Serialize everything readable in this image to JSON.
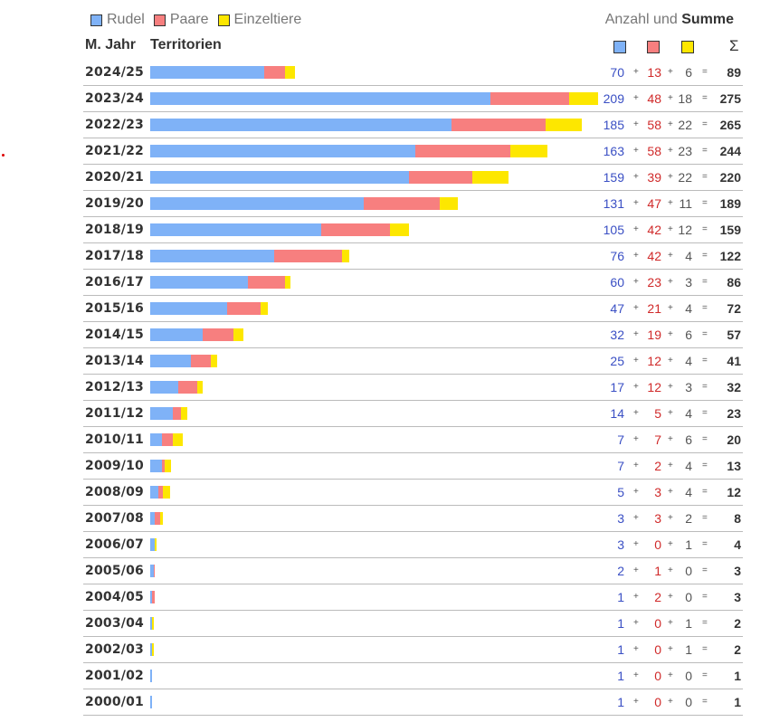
{
  "legend": {
    "rudel": "Rudel",
    "paare": "Paare",
    "einzeltiere": "Einzeltiere"
  },
  "header": {
    "anzahl_und": "Anzahl und",
    "summe": "Summe",
    "col_year": "M. Jahr",
    "col_territorien": "Territorien",
    "sigma": "Σ"
  },
  "colors": {
    "rudel": "#7fb2f7",
    "paare": "#f77f7f",
    "einzeltiere": "#fde700"
  },
  "chart_data": {
    "type": "bar",
    "stacked": true,
    "orientation": "horizontal",
    "categories": [
      "2024/25",
      "2023/24",
      "2022/23",
      "2021/22",
      "2020/21",
      "2019/20",
      "2018/19",
      "2017/18",
      "2016/17",
      "2015/16",
      "2014/15",
      "2013/14",
      "2012/13",
      "2011/12",
      "2010/11",
      "2009/10",
      "2008/09",
      "2007/08",
      "2006/07",
      "2005/06",
      "2004/05",
      "2003/04",
      "2002/03",
      "2001/02",
      "2000/01"
    ],
    "series": [
      {
        "name": "Rudel",
        "values": [
          70,
          209,
          185,
          163,
          159,
          131,
          105,
          76,
          60,
          47,
          32,
          25,
          17,
          14,
          7,
          7,
          5,
          3,
          3,
          2,
          1,
          1,
          1,
          1,
          1
        ]
      },
      {
        "name": "Paare",
        "values": [
          13,
          48,
          58,
          58,
          39,
          47,
          42,
          42,
          23,
          21,
          19,
          12,
          12,
          5,
          7,
          2,
          3,
          3,
          0,
          1,
          2,
          0,
          0,
          0,
          0
        ]
      },
      {
        "name": "Einzeltiere",
        "values": [
          6,
          18,
          22,
          23,
          22,
          11,
          12,
          4,
          3,
          4,
          6,
          4,
          3,
          4,
          6,
          4,
          4,
          2,
          1,
          0,
          0,
          1,
          1,
          0,
          0
        ]
      }
    ],
    "totals": [
      89,
      275,
      265,
      244,
      220,
      189,
      159,
      122,
      86,
      72,
      57,
      41,
      32,
      23,
      20,
      13,
      12,
      8,
      4,
      3,
      3,
      2,
      2,
      1,
      1
    ],
    "xlabel": "Territorien",
    "ylabel": "M. Jahr"
  }
}
